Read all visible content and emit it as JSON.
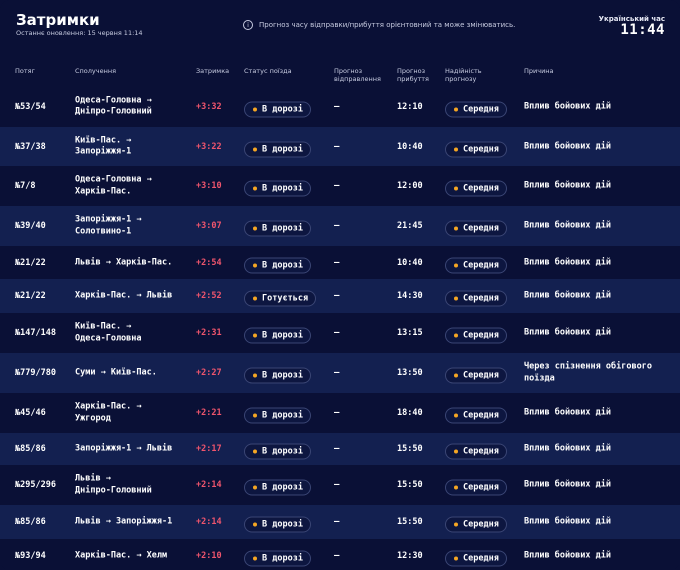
{
  "header": {
    "title": "Затримки",
    "updated": "Останнє оновлення: 15 червня 11:14",
    "notice_icon": "i",
    "notice": "Прогноз часу відправки/прибуття орієнтовний та може змінюватись.",
    "clock_label": "Український час",
    "clock": "11:44"
  },
  "columns": {
    "train": "Потяг",
    "route": "Сполучення",
    "delay": "Затримка",
    "status": "Статус поїзда",
    "dep": [
      "Прогноз",
      "відправлення"
    ],
    "arr": [
      "Прогноз",
      "прибуття"
    ],
    "rel": [
      "Надійність",
      "прогнозу"
    ],
    "reason": "Причина"
  },
  "colors": {
    "background": "#0a1036",
    "row_alt": "#132050",
    "delay": "#f0556d",
    "status_dot": "#f5a623"
  },
  "rows": [
    {
      "train": "№53/54",
      "route": [
        "Одеса-Головна →",
        "Дніпро-Головний"
      ],
      "delay": "+3:32",
      "status": "В дорозі",
      "dep": "—",
      "arr": "12:10",
      "rel": "Середня",
      "reason": [
        "Вплив бойових дій"
      ]
    },
    {
      "train": "№37/38",
      "route": [
        "Київ-Пас. →",
        "Запоріжжя-1"
      ],
      "delay": "+3:22",
      "status": "В дорозі",
      "dep": "—",
      "arr": "10:40",
      "rel": "Середня",
      "reason": [
        "Вплив бойових дій"
      ]
    },
    {
      "train": "№7/8",
      "route": [
        "Одеса-Головна →",
        "Харків-Пас."
      ],
      "delay": "+3:10",
      "status": "В дорозі",
      "dep": "—",
      "arr": "12:00",
      "rel": "Середня",
      "reason": [
        "Вплив бойових дій"
      ]
    },
    {
      "train": "№39/40",
      "route": [
        "Запоріжжя-1 →",
        "Солотвино-1"
      ],
      "delay": "+3:07",
      "status": "В дорозі",
      "dep": "—",
      "arr": "21:45",
      "rel": "Середня",
      "reason": [
        "Вплив бойових дій"
      ]
    },
    {
      "train": "№21/22",
      "route": [
        "Львів → Харків-Пас."
      ],
      "delay": "+2:54",
      "status": "В дорозі",
      "dep": "—",
      "arr": "10:40",
      "rel": "Середня",
      "reason": [
        "Вплив бойових дій"
      ]
    },
    {
      "train": "№21/22",
      "route": [
        "Харків-Пас. → Львів"
      ],
      "delay": "+2:52",
      "status": "Готується",
      "dep": "—",
      "arr": "14:30",
      "rel": "Середня",
      "reason": [
        "Вплив бойових дій"
      ]
    },
    {
      "train": "№147/148",
      "route": [
        "Київ-Пас. →",
        "Одеса-Головна"
      ],
      "delay": "+2:31",
      "status": "В дорозі",
      "dep": "—",
      "arr": "13:15",
      "rel": "Середня",
      "reason": [
        "Вплив бойових дій"
      ]
    },
    {
      "train": "№779/780",
      "route": [
        "Суми → Київ-Пас."
      ],
      "delay": "+2:27",
      "status": "В дорозі",
      "dep": "—",
      "arr": "13:50",
      "rel": "Середня",
      "reason": [
        "Через спізнення обігового",
        "поїзда"
      ]
    },
    {
      "train": "№45/46",
      "route": [
        "Харків-Пас. →",
        "Ужгород"
      ],
      "delay": "+2:21",
      "status": "В дорозі",
      "dep": "—",
      "arr": "18:40",
      "rel": "Середня",
      "reason": [
        "Вплив бойових дій"
      ]
    },
    {
      "train": "№85/86",
      "route": [
        "Запоріжжя-1 → Львів"
      ],
      "delay": "+2:17",
      "status": "В дорозі",
      "dep": "—",
      "arr": "15:50",
      "rel": "Середня",
      "reason": [
        "Вплив бойових дій"
      ]
    },
    {
      "train": "№295/296",
      "route": [
        "Львів →",
        "Дніпро-Головний"
      ],
      "delay": "+2:14",
      "status": "В дорозі",
      "dep": "—",
      "arr": "15:50",
      "rel": "Середня",
      "reason": [
        "Вплив бойових дій"
      ]
    },
    {
      "train": "№85/86",
      "route": [
        "Львів → Запоріжжя-1"
      ],
      "delay": "+2:14",
      "status": "В дорозі",
      "dep": "—",
      "arr": "15:50",
      "rel": "Середня",
      "reason": [
        "Вплив бойових дій"
      ]
    },
    {
      "train": "№93/94",
      "route": [
        "Харків-Пас. → Хелм"
      ],
      "delay": "+2:10",
      "status": "В дорозі",
      "dep": "—",
      "arr": "12:30",
      "rel": "Середня",
      "reason": [
        "Вплив бойових дій"
      ]
    }
  ]
}
